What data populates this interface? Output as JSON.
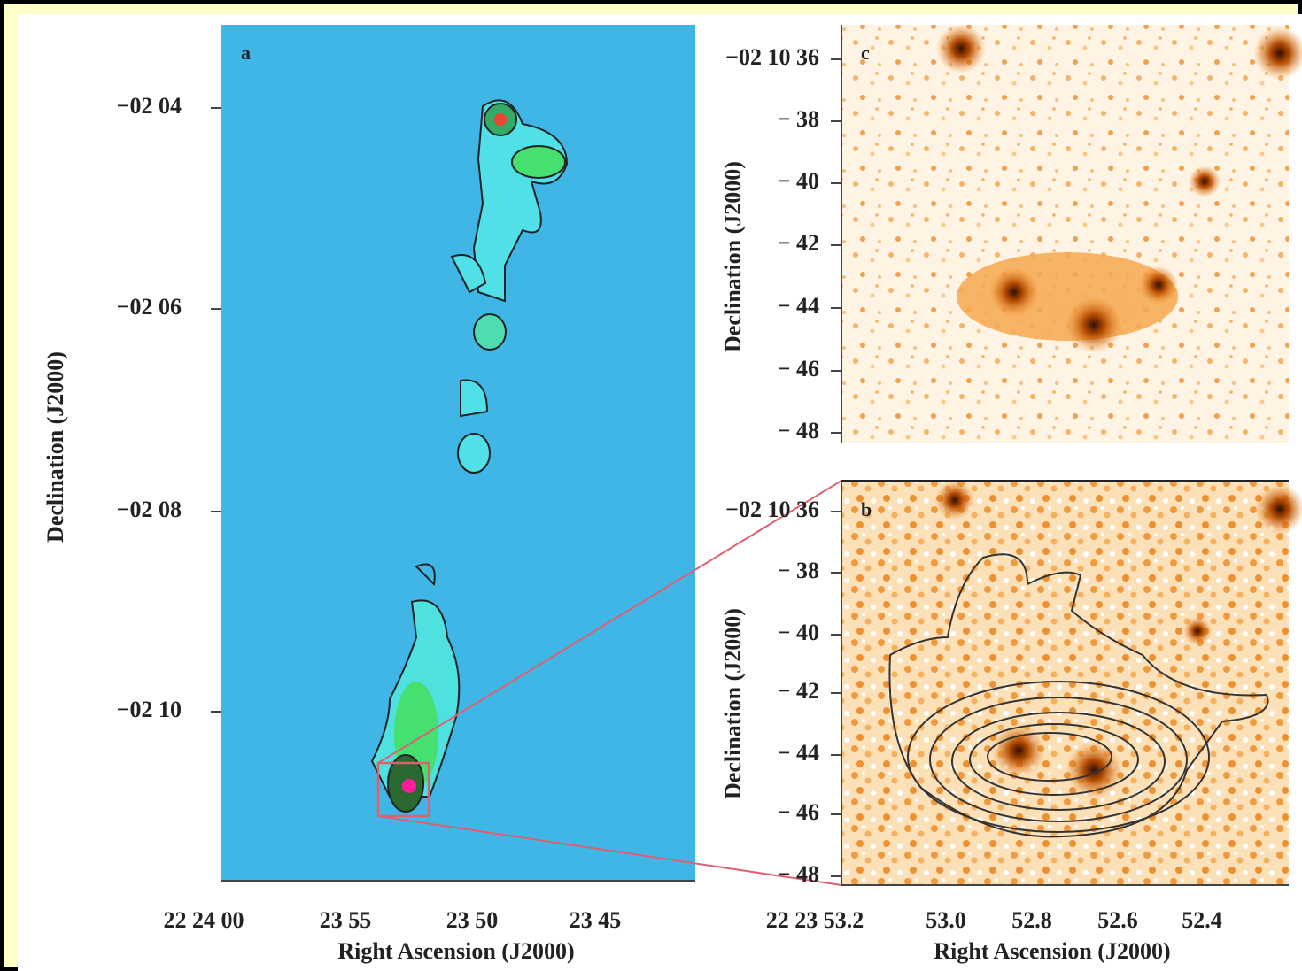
{
  "panels": [
    {
      "label": "a",
      "y_axis_label": "Declination (J2000)",
      "x_axis_label": "Right Ascension (J2000)",
      "y_ticks": [
        "−02 04",
        "−02 06",
        "−02 08",
        "−02 10"
      ],
      "x_ticks": [
        "22 24 00",
        "23 55",
        "23 50",
        "23 45"
      ]
    },
    {
      "label": "c",
      "y_axis_label": "Declination (J2000)",
      "y_ticks": [
        "−02 10 36",
        "− 38",
        "− 40",
        "− 42",
        "− 44",
        "− 46",
        "− 48"
      ]
    },
    {
      "label": "b",
      "y_axis_label": "Declination (J2000)",
      "x_axis_label": "Right Ascension (J2000)",
      "y_ticks": [
        "−02 10 36",
        "− 38",
        "− 40",
        "− 42",
        "− 44",
        "− 46",
        "− 48"
      ],
      "x_ticks": [
        "22 23 53.2",
        "53.0",
        "52.8",
        "52.6",
        "52.4"
      ]
    }
  ]
}
